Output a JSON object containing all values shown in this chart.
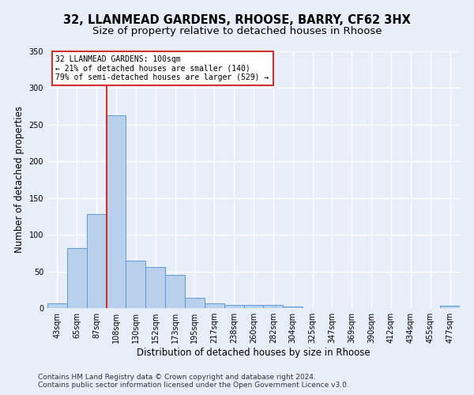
{
  "title_line1": "32, LLANMEAD GARDENS, RHOOSE, BARRY, CF62 3HX",
  "title_line2": "Size of property relative to detached houses in Rhoose",
  "xlabel": "Distribution of detached houses by size in Rhoose",
  "ylabel": "Number of detached properties",
  "footer_line1": "Contains HM Land Registry data © Crown copyright and database right 2024.",
  "footer_line2": "Contains public sector information licensed under the Open Government Licence v3.0.",
  "bar_labels": [
    "43sqm",
    "65sqm",
    "87sqm",
    "108sqm",
    "130sqm",
    "152sqm",
    "173sqm",
    "195sqm",
    "217sqm",
    "238sqm",
    "260sqm",
    "282sqm",
    "304sqm",
    "325sqm",
    "347sqm",
    "369sqm",
    "390sqm",
    "412sqm",
    "434sqm",
    "455sqm",
    "477sqm"
  ],
  "bar_values": [
    6,
    82,
    128,
    263,
    65,
    56,
    45,
    14,
    6,
    4,
    4,
    4,
    2,
    0,
    0,
    0,
    0,
    0,
    0,
    0,
    3
  ],
  "bar_color": "#b8d0eb",
  "bar_edge_color": "#5b9bd5",
  "highlight_bar_color": "#d32f2f",
  "annotation_text": "32 LLANMEAD GARDENS: 100sqm\n← 21% of detached houses are smaller (140)\n79% of semi-detached houses are larger (529) →",
  "annotation_box_color": "#ffffff",
  "annotation_box_edge_color": "#d32f2f",
  "ylim": [
    0,
    350
  ],
  "yticks": [
    0,
    50,
    100,
    150,
    200,
    250,
    300,
    350
  ],
  "background_color": "#e8eef8",
  "plot_background_color": "#e8eef8",
  "grid_color": "#ffffff",
  "title_fontsize": 10.5,
  "subtitle_fontsize": 9.5,
  "axis_label_fontsize": 8.5,
  "tick_fontsize": 7,
  "footer_fontsize": 6.5,
  "red_line_x": 2.5
}
